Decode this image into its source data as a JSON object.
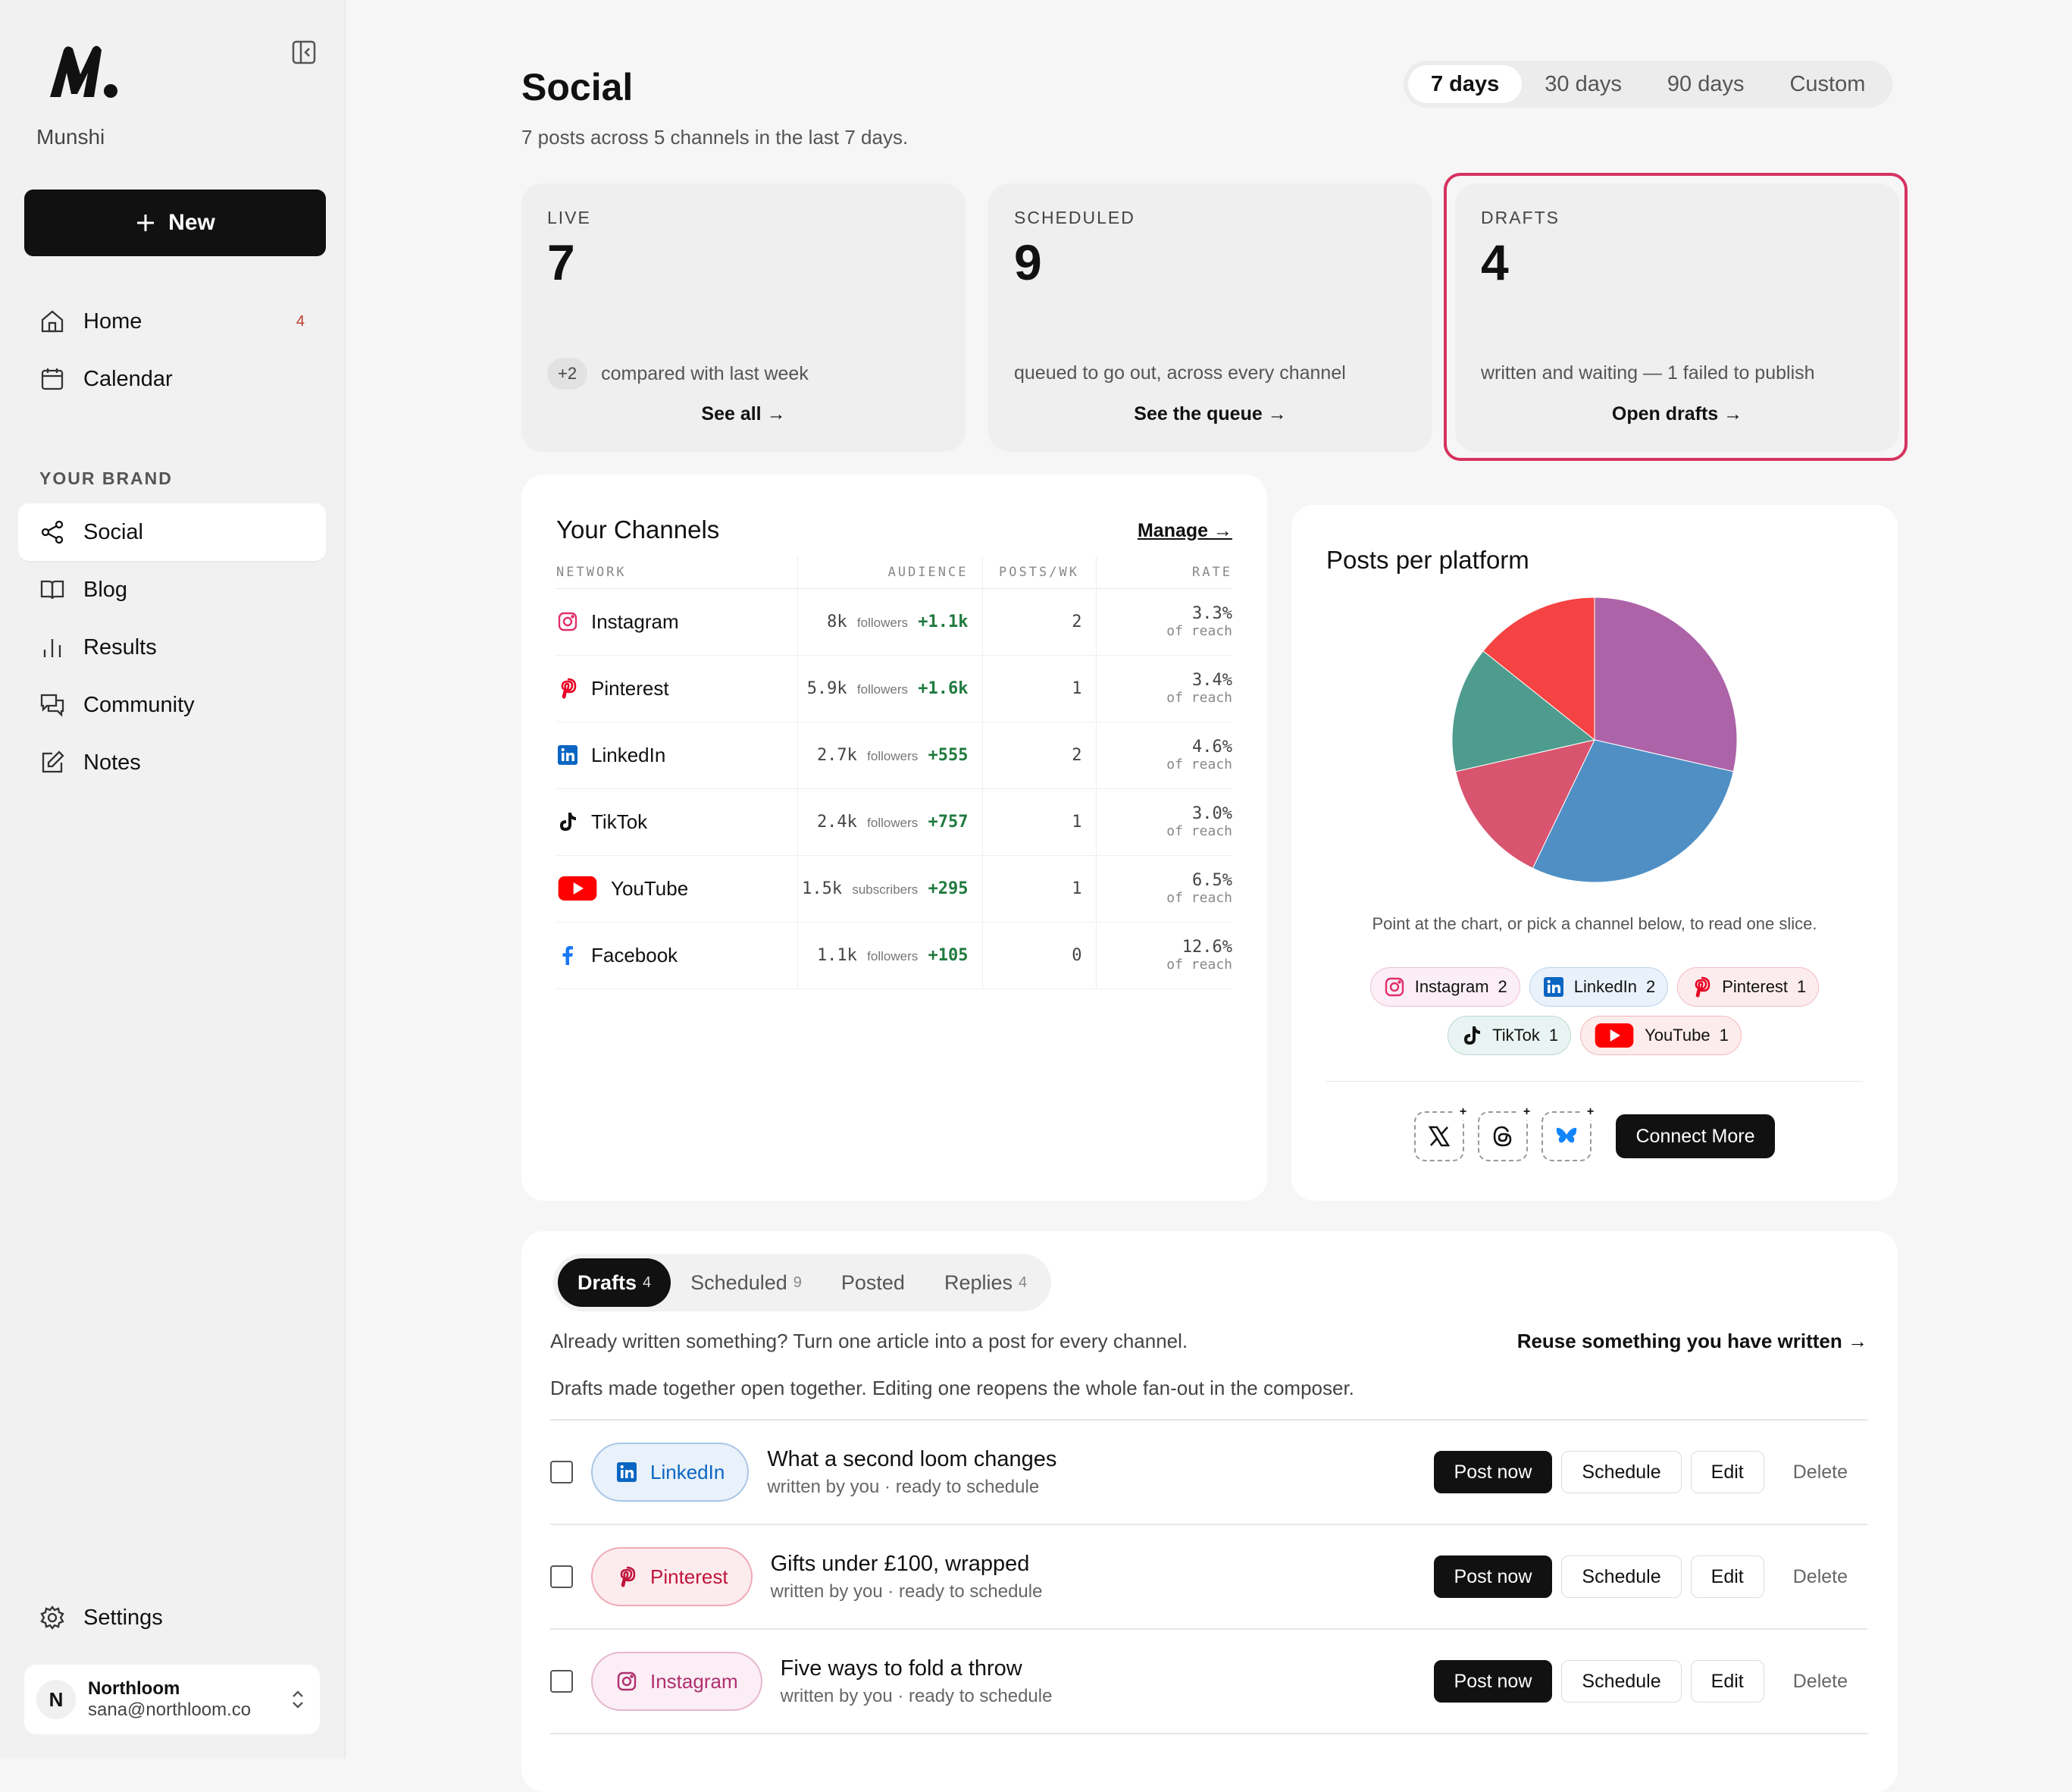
{
  "sidebar": {
    "brand": "Munshi",
    "new_label": "New",
    "nav": [
      {
        "label": "Home",
        "badge": "4"
      },
      {
        "label": "Calendar"
      }
    ],
    "section_label": "YOUR BRAND",
    "brand_nav": [
      {
        "label": "Social"
      },
      {
        "label": "Blog"
      },
      {
        "label": "Results"
      },
      {
        "label": "Community"
      },
      {
        "label": "Notes"
      }
    ],
    "settings_label": "Settings",
    "account": {
      "initial": "N",
      "name": "Northloom",
      "email": "sana@northloom.co"
    }
  },
  "header": {
    "title": "Social",
    "subtitle": "7 posts across 5 channels in the last 7 days.",
    "ranges": [
      "7 days",
      "30 days",
      "90 days",
      "Custom"
    ],
    "selected_range": "7 days"
  },
  "stats": [
    {
      "label": "LIVE",
      "value": "7",
      "delta": "+2",
      "desc": "compared with last week",
      "link": "See all →"
    },
    {
      "label": "SCHEDULED",
      "value": "9",
      "desc": "queued to go out, across every channel",
      "link": "See the queue →"
    },
    {
      "label": "DRAFTS",
      "value": "4",
      "desc": "written and waiting — 1 failed to publish",
      "link": "Open drafts →"
    }
  ],
  "channels": {
    "title": "Your Channels",
    "manage": "Manage →",
    "columns": [
      "NETWORK",
      "AUDIENCE",
      "POSTS/WK",
      "RATE"
    ],
    "rows": [
      {
        "network": "Instagram",
        "audience": "8k",
        "unit": "followers",
        "delta": "+1.1k",
        "posts": "2",
        "rate": "3.3%",
        "rate_sub": "of reach"
      },
      {
        "network": "Pinterest",
        "audience": "5.9k",
        "unit": "followers",
        "delta": "+1.6k",
        "posts": "1",
        "rate": "3.4%",
        "rate_sub": "of reach"
      },
      {
        "network": "LinkedIn",
        "audience": "2.7k",
        "unit": "followers",
        "delta": "+555",
        "posts": "2",
        "rate": "4.6%",
        "rate_sub": "of reach"
      },
      {
        "network": "TikTok",
        "audience": "2.4k",
        "unit": "followers",
        "delta": "+757",
        "posts": "1",
        "rate": "3.0%",
        "rate_sub": "of reach"
      },
      {
        "network": "YouTube",
        "audience": "1.5k",
        "unit": "subscribers",
        "delta": "+295",
        "posts": "1",
        "rate": "6.5%",
        "rate_sub": "of reach"
      },
      {
        "network": "Facebook",
        "audience": "1.1k",
        "unit": "followers",
        "delta": "+105",
        "posts": "0",
        "rate": "12.6%",
        "rate_sub": "of reach"
      }
    ]
  },
  "posts_per_platform": {
    "title": "Posts per platform",
    "hint": "Point at the chart, or pick a channel below, to read one slice.",
    "chips": [
      {
        "name": "Instagram",
        "count": "2"
      },
      {
        "name": "LinkedIn",
        "count": "2"
      },
      {
        "name": "Pinterest",
        "count": "1"
      },
      {
        "name": "TikTok",
        "count": "1"
      },
      {
        "name": "YouTube",
        "count": "1"
      }
    ],
    "connect_label": "Connect More"
  },
  "chart_data": {
    "type": "pie",
    "categories": [
      "Instagram",
      "LinkedIn",
      "Pinterest",
      "TikTok",
      "YouTube"
    ],
    "values": [
      2,
      2,
      1,
      1,
      1
    ],
    "colors": [
      "#ad63a8",
      "#4f8fc4",
      "#d9546e",
      "#4e9c8e",
      "#f54343"
    ]
  },
  "drafts": {
    "tabs": [
      {
        "label": "Drafts",
        "count": "4"
      },
      {
        "label": "Scheduled",
        "count": "9"
      },
      {
        "label": "Posted",
        "count": ""
      },
      {
        "label": "Replies",
        "count": "4"
      }
    ],
    "reuse_text": "Already written something? Turn one article into a post for every channel.",
    "reuse_link": "Reuse something you have written →",
    "fanout_text": "Drafts made together open together. Editing one reopens the whole fan-out in the composer.",
    "items": [
      {
        "channel": "LinkedIn",
        "title": "What a second loom changes",
        "sub": "written by you · ready to schedule"
      },
      {
        "channel": "Pinterest",
        "title": "Gifts under £100, wrapped",
        "sub": "written by you · ready to schedule"
      },
      {
        "channel": "Instagram",
        "title": "Five ways to fold a throw",
        "sub": "written by you · ready to schedule"
      }
    ],
    "actions": {
      "post_now": "Post now",
      "schedule": "Schedule",
      "edit": "Edit",
      "delete": "Delete"
    }
  },
  "colors": {
    "accent_highlight": "#d6335f",
    "instagram": "#e1306c",
    "pinterest": "#e60023",
    "linkedin": "#0a66c2",
    "youtube": "#ff0000",
    "facebook": "#1877f2",
    "positive": "#1f7a3e"
  }
}
